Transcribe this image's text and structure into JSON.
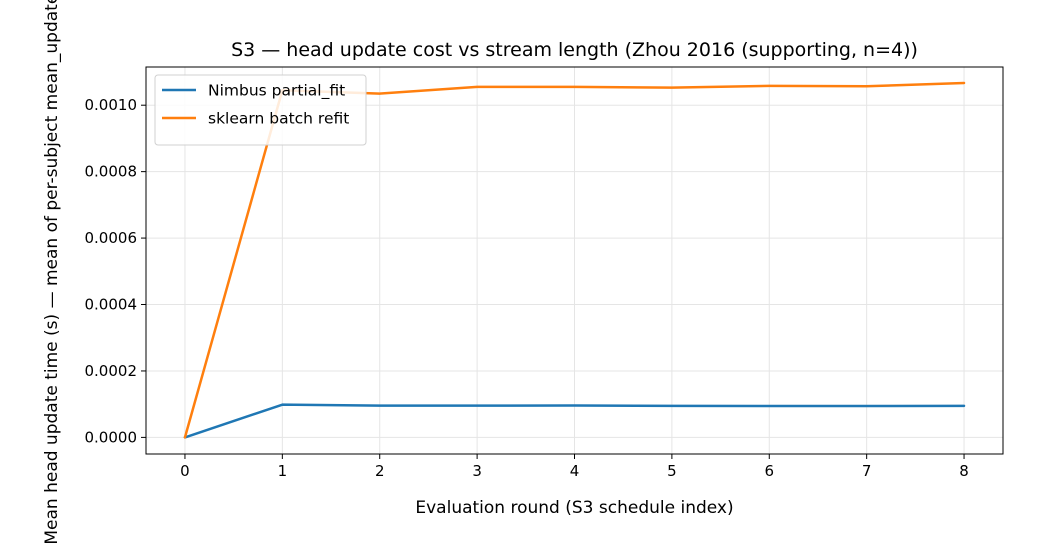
{
  "chart_data": {
    "type": "line",
    "title": "S3 — head update cost vs stream length (Zhou 2016 (supporting, n=4))",
    "xlabel": "Evaluation round (S3 schedule index)",
    "ylabel": "Mean head update time (s) — mean of per-subject mean_update_s",
    "x": [
      0,
      1,
      2,
      3,
      4,
      5,
      6,
      7,
      8
    ],
    "xlim": [
      -0.4,
      8.4
    ],
    "ylim": [
      -5e-05,
      0.001115
    ],
    "xticks": [
      0,
      1,
      2,
      3,
      4,
      5,
      6,
      7,
      8
    ],
    "xtick_labels": [
      "0",
      "1",
      "2",
      "3",
      "4",
      "5",
      "6",
      "7",
      "8"
    ],
    "yticks": [
      0,
      0.0002,
      0.0004,
      0.0006,
      0.0008,
      0.001
    ],
    "ytick_labels": [
      "0.0000",
      "0.0002",
      "0.0004",
      "0.0006",
      "0.0008",
      "0.0010"
    ],
    "grid": true,
    "legend_position": "top-left",
    "series": [
      {
        "name": "Nimbus partial_fit",
        "color": "#1f77b4",
        "values": [
          0,
          9.85e-05,
          9.55e-05,
          9.55e-05,
          9.6e-05,
          9.5e-05,
          9.45e-05,
          9.45e-05,
          9.5e-05
        ]
      },
      {
        "name": "sklearn batch refit",
        "color": "#ff7f0e",
        "values": [
          0,
          0.001045,
          0.001035,
          0.001055,
          0.001055,
          0.001053,
          0.001058,
          0.001057,
          0.001067
        ]
      }
    ]
  }
}
